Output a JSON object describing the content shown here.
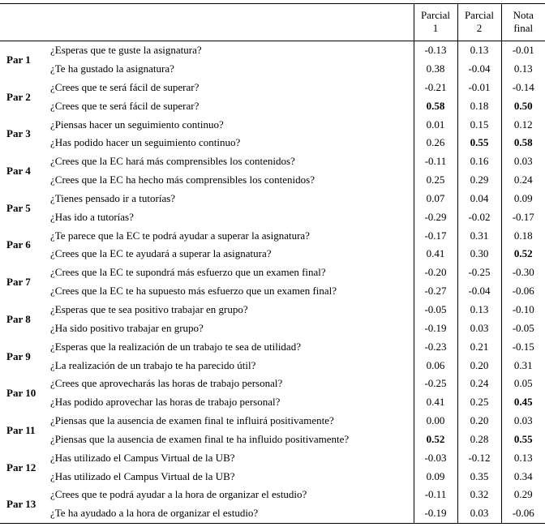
{
  "headers": {
    "empty": "",
    "col1_line1": "Parcial",
    "col1_line2": "1",
    "col2_line1": "Parcial",
    "col2_line2": "2",
    "col3_line1": "Nota",
    "col3_line2": "final"
  },
  "pairs": [
    {
      "label": "Par 1",
      "q1": "¿Esperas que te guste la asignatura?",
      "v1": [
        "-0.13",
        "0.13",
        "-0.01"
      ],
      "b1": [
        false,
        false,
        false
      ],
      "q2": "¿Te ha gustado la asignatura?",
      "v2": [
        "0.38",
        "-0.04",
        "0.13"
      ],
      "b2": [
        false,
        false,
        false
      ]
    },
    {
      "label": "Par 2",
      "q1": "¿Crees que te será fácil de superar?",
      "v1": [
        "-0.21",
        "-0.01",
        "-0.14"
      ],
      "b1": [
        false,
        false,
        false
      ],
      "q2": "¿Crees que te será fácil de superar?",
      "v2": [
        "0.58",
        "0.18",
        "0.50"
      ],
      "b2": [
        true,
        false,
        true
      ]
    },
    {
      "label": "Par 3",
      "q1": "¿Piensas hacer un seguimiento continuo?",
      "v1": [
        "0.01",
        "0.15",
        "0.12"
      ],
      "b1": [
        false,
        false,
        false
      ],
      "q2": "¿Has podido hacer un seguimiento continuo?",
      "v2": [
        "0.26",
        "0.55",
        "0.58"
      ],
      "b2": [
        false,
        true,
        true
      ]
    },
    {
      "label": "Par 4",
      "q1": "¿Crees que la EC hará más comprensibles los contenidos?",
      "v1": [
        "-0.11",
        "0.16",
        "0.03"
      ],
      "b1": [
        false,
        false,
        false
      ],
      "q2": "¿Crees que la EC ha hecho más comprensibles los contenidos?",
      "v2": [
        "0.25",
        "0.29",
        "0.24"
      ],
      "b2": [
        false,
        false,
        false
      ]
    },
    {
      "label": "Par 5",
      "q1": "¿Tienes pensado ir a tutorías?",
      "v1": [
        "0.07",
        "0.04",
        "0.09"
      ],
      "b1": [
        false,
        false,
        false
      ],
      "q2": "¿Has ido a tutorías?",
      "v2": [
        "-0.29",
        "-0.02",
        "-0.17"
      ],
      "b2": [
        false,
        false,
        false
      ]
    },
    {
      "label": "Par 6",
      "q1": "¿Te parece que la EC te podrá ayudar a superar la asignatura?",
      "v1": [
        "-0.17",
        "0.31",
        "0.18"
      ],
      "b1": [
        false,
        false,
        false
      ],
      "q2": "¿Crees que la EC te ayudará a superar la asignatura?",
      "v2": [
        "0.41",
        "0.30",
        "0.52"
      ],
      "b2": [
        false,
        false,
        true
      ]
    },
    {
      "label": "Par 7",
      "q1": "¿Crees que la EC te supondrá más esfuerzo que un examen final?",
      "v1": [
        "-0.20",
        "-0.25",
        "-0.30"
      ],
      "b1": [
        false,
        false,
        false
      ],
      "q2": "¿Crees que la EC te ha supuesto más esfuerzo que un examen final?",
      "v2": [
        "-0.27",
        "-0.04",
        "-0.06"
      ],
      "b2": [
        false,
        false,
        false
      ]
    },
    {
      "label": "Par 8",
      "q1": "¿Esperas que te sea positivo trabajar en grupo?",
      "v1": [
        "-0.05",
        "0.13",
        "-0.10"
      ],
      "b1": [
        false,
        false,
        false
      ],
      "q2": "¿Ha sido positivo trabajar en grupo?",
      "v2": [
        "-0.19",
        "0.03",
        "-0.05"
      ],
      "b2": [
        false,
        false,
        false
      ]
    },
    {
      "label": "Par 9",
      "q1": "¿Esperas que la realización de un trabajo te sea de utilidad?",
      "v1": [
        "-0.23",
        "0.21",
        "-0.15"
      ],
      "b1": [
        false,
        false,
        false
      ],
      "q2": "¿La realización de un trabajo te ha parecido útil?",
      "v2": [
        "0.06",
        "0.20",
        "0.31"
      ],
      "b2": [
        false,
        false,
        false
      ]
    },
    {
      "label": "Par 10",
      "q1": "¿Crees que aprovecharás las horas de trabajo personal?",
      "v1": [
        "-0.25",
        "0.24",
        "0.05"
      ],
      "b1": [
        false,
        false,
        false
      ],
      "q2": "¿Has podido aprovechar las horas de trabajo personal?",
      "v2": [
        "0.41",
        "0.25",
        "0.45"
      ],
      "b2": [
        false,
        false,
        true
      ]
    },
    {
      "label": "Par 11",
      "q1": "¿Piensas que la ausencia de examen final te influirá positivamente?",
      "v1": [
        "0.00",
        "0.20",
        "0.03"
      ],
      "b1": [
        false,
        false,
        false
      ],
      "q2": "¿Piensas que la ausencia de examen final te ha influido positivamente?",
      "v2": [
        "0.52",
        "0.28",
        "0.55"
      ],
      "b2": [
        true,
        false,
        true
      ]
    },
    {
      "label": "Par 12",
      "q1": "¿Has utilizado el Campus Virtual de la UB?",
      "v1": [
        "-0.03",
        "-0.12",
        "0.13"
      ],
      "b1": [
        false,
        false,
        false
      ],
      "q2": "¿Has utilizado el Campus Virtual de la UB?",
      "v2": [
        "0.09",
        "0.35",
        "0.34"
      ],
      "b2": [
        false,
        false,
        false
      ]
    },
    {
      "label": "Par 13",
      "q1": "¿Crees que te podrá ayudar a la hora de organizar el estudio?",
      "v1": [
        "-0.11",
        "0.32",
        "0.29"
      ],
      "b1": [
        false,
        false,
        false
      ],
      "q2": "¿Te ha ayudado a la hora de organizar el estudio?",
      "v2": [
        "-0.19",
        "0.03",
        "-0.06"
      ],
      "b2": [
        false,
        false,
        false
      ]
    }
  ],
  "style": {
    "fontFamily": "Times New Roman",
    "fontSize": 13,
    "background": "#ffffff",
    "text": "#000000",
    "border": "#000000"
  }
}
